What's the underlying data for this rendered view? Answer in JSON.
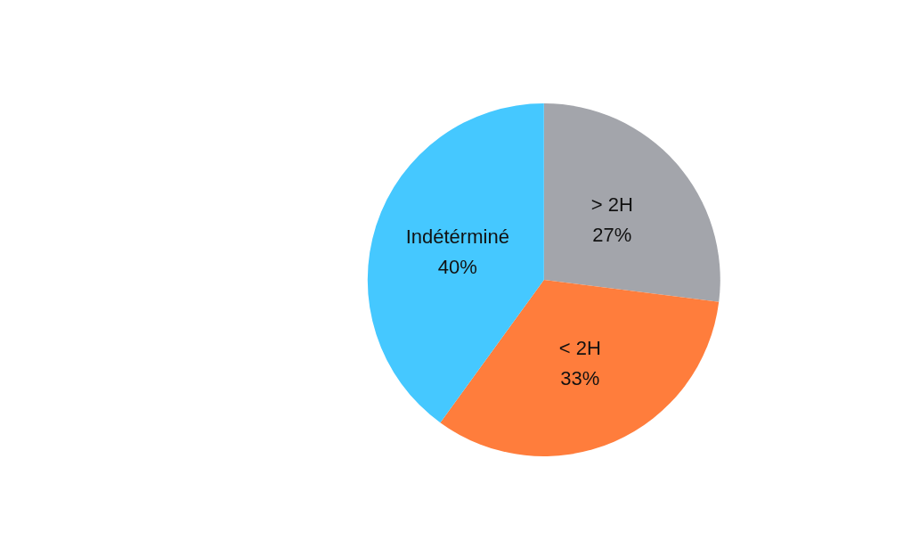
{
  "chart_data": {
    "type": "pie",
    "categories": [
      "> 2H",
      "< 2H",
      "Indétérminé"
    ],
    "values": [
      27,
      33,
      40
    ],
    "colors": [
      "#a3a5ab",
      "#ff7d3c",
      "#45c8ff"
    ],
    "value_labels": [
      "27%",
      "33%",
      "40%"
    ],
    "legend": false
  }
}
